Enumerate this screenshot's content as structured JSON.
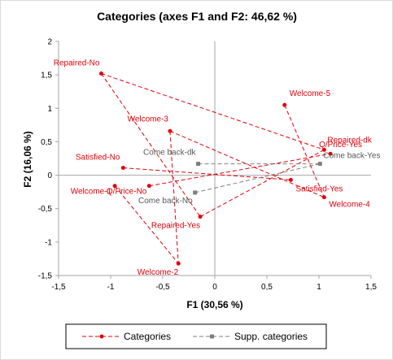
{
  "chart_data": {
    "type": "scatter",
    "title": "Categories (axes F1 and F2: 46,62 %)",
    "xlabel": "F1 (30,56 %)",
    "ylabel": "F2 (16,06 %)",
    "xlim": [
      -1.5,
      1.5
    ],
    "ylim": [
      -1.5,
      2
    ],
    "x_ticks": [
      -1.5,
      -1,
      -0.5,
      0,
      0.5,
      1,
      1.5
    ],
    "y_ticks": [
      -1.5,
      -1,
      -0.5,
      0,
      0.5,
      1,
      1.5,
      2
    ],
    "x_tick_labels": [
      "-1,5",
      "-1",
      "-0,5",
      "0",
      "0,5",
      "1",
      "1,5"
    ],
    "y_tick_labels": [
      "-1,5",
      "-1",
      "-0,5",
      "0",
      "0,5",
      "1",
      "1,5",
      "2"
    ],
    "grid": false,
    "legend_position": "bottom",
    "colors": {
      "categories": "#e0000b",
      "supp": "#7f7f7f"
    },
    "series": [
      {
        "name": "Categories",
        "points": [
          {
            "label": "Repaired-No",
            "x": -1.09,
            "y": 1.52
          },
          {
            "label": "Satisfied-No",
            "x": -0.88,
            "y": 0.11
          },
          {
            "label": "Welcome-3",
            "x": -0.43,
            "y": 0.66
          },
          {
            "label": "Welcome-5",
            "x": 0.67,
            "y": 1.05
          },
          {
            "label": "Repaired-dk",
            "x": 1.05,
            "y": 0.38
          },
          {
            "label": "Q/Price-Yes",
            "x": 1.11,
            "y": 0.32
          },
          {
            "label": "Satisfied-Yes",
            "x": 0.73,
            "y": -0.07
          },
          {
            "label": "Welcome-4",
            "x": 1.05,
            "y": -0.33
          },
          {
            "label": "Welcome-1",
            "x": -0.96,
            "y": -0.16
          },
          {
            "label": "Q/Price-No",
            "x": -0.63,
            "y": -0.16
          },
          {
            "label": "Repaired-Yes",
            "x": -0.14,
            "y": -0.62
          },
          {
            "label": "Welcome-2",
            "x": -0.35,
            "y": -1.32
          }
        ],
        "segments": [
          [
            "Repaired-No",
            "Repaired-Yes"
          ],
          [
            "Repaired-No",
            "Repaired-dk"
          ],
          [
            "Satisfied-No",
            "Satisfied-Yes"
          ],
          [
            "Welcome-3",
            "Welcome-4"
          ],
          [
            "Welcome-3",
            "Welcome-2"
          ],
          [
            "Welcome-1",
            "Welcome-2"
          ],
          [
            "Welcome-5",
            "Welcome-4"
          ],
          [
            "Q/Price-No",
            "Q/Price-Yes"
          ],
          [
            "Repaired-Yes",
            "Repaired-dk"
          ]
        ]
      },
      {
        "name": "Supp. categories",
        "points": [
          {
            "label": "Come back-dk",
            "x": -0.16,
            "y": 0.17
          },
          {
            "label": "Come back-Yes",
            "x": 1.01,
            "y": 0.17
          },
          {
            "label": "Come back-No",
            "x": -0.19,
            "y": -0.26
          }
        ],
        "segments": [
          [
            "Come back-dk",
            "Come back-Yes"
          ],
          [
            "Come back-No",
            "Come back-Yes"
          ]
        ]
      }
    ]
  }
}
